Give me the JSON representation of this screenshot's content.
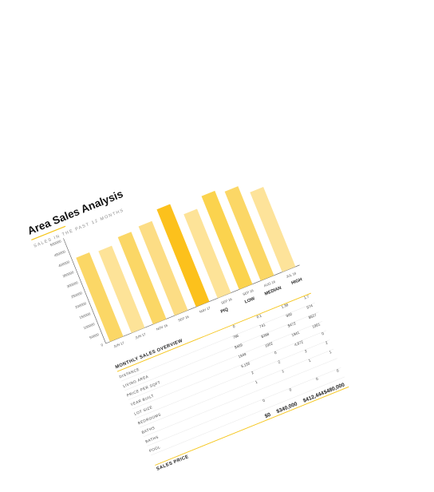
{
  "chart_data": {
    "type": "bar",
    "title": "Area Sales Analysis",
    "subtitle": "SALES IN THE PAST 12 MONTHS",
    "categories": [
      "JUN 17",
      "JUN 17",
      "NOV 16",
      "SEP 16",
      "MAY 17",
      "SEP 16",
      "SEP 16",
      "AUG 16",
      "JUL 16"
    ],
    "values": [
      405000,
      395000,
      420000,
      430000,
      470000,
      405000,
      450000,
      430000,
      385000
    ],
    "bar_colors": [
      "#fbd766",
      "#fde398",
      "#fbd766",
      "#fcdd85",
      "#fcc11c",
      "#fde398",
      "#fbd34e",
      "#fbd766",
      "#fde39a"
    ],
    "yticks": [
      "0",
      "50000",
      "100000",
      "150000",
      "200000",
      "250000",
      "300000",
      "350000",
      "400000",
      "450000",
      "500000"
    ],
    "ylim": [
      0,
      500000
    ],
    "accent": "#f5c518"
  },
  "table": {
    "section_title": "MONTHLY SALES OVERVIEW",
    "columns": [
      "PIQ",
      "LOW",
      "MEDIAN",
      "HIGH"
    ],
    "rows": [
      {
        "label": "DISTANCE",
        "values": [
          "0",
          "0.1",
          "1.38",
          "1.7"
        ]
      },
      {
        "label": "LIVING AREA",
        "values": [
          "796",
          "741",
          "900",
          "974"
        ]
      },
      {
        "label": "PRICE PER SQFT",
        "values": [
          "$469",
          "$398",
          "$472",
          "$527"
        ]
      },
      {
        "label": "YEAR BUILT",
        "values": [
          "1949",
          "1902",
          "1941",
          "1961"
        ]
      },
      {
        "label": "LOT SIZE",
        "values": [
          "6,156",
          "0",
          "4,872",
          "0"
        ]
      },
      {
        "label": "BEDROOMS",
        "values": [
          "2",
          "2",
          "2",
          "2"
        ]
      },
      {
        "label": "BATHS",
        "values": [
          "1",
          "1",
          "1",
          "1"
        ]
      },
      {
        "label": "BATHS",
        "values": [
          "",
          "",
          "",
          ""
        ]
      },
      {
        "label": "POOL",
        "values": [
          "0",
          "0",
          "0",
          "0"
        ]
      }
    ],
    "sales_price": {
      "label": "SALES PRICE",
      "values": [
        "$0",
        "$340,000",
        "$412,444",
        "$480,000"
      ]
    }
  }
}
